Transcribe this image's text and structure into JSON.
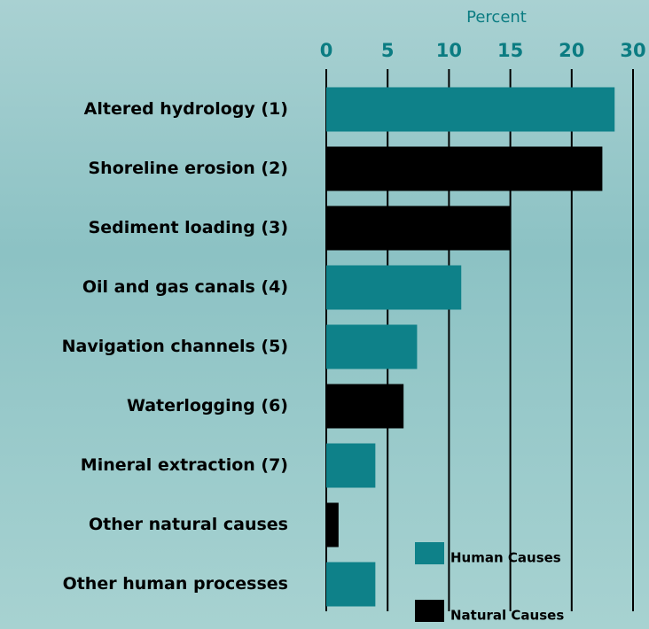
{
  "chart_data": {
    "type": "bar",
    "orientation": "horizontal",
    "xlabel": "Percent",
    "categories": [
      "Altered hydrology (1)",
      "Shoreline erosion (2)",
      "Sediment loading (3)",
      "Oil and gas canals (4)",
      "Navigation channels (5)",
      "Waterlogging (6)",
      "Mineral extraction (7)",
      "Other natural causes",
      "Other human processes"
    ],
    "series": [
      {
        "name": "Human Causes",
        "color": "#0e8189",
        "values": [
          27,
          null,
          null,
          11,
          7.4,
          null,
          4,
          null,
          4
        ]
      },
      {
        "name": "Natural Causes",
        "color": "#000000",
        "values": [
          null,
          25,
          15,
          null,
          null,
          6.3,
          null,
          1,
          null
        ]
      }
    ],
    "xlim": [
      0,
      30
    ],
    "xticks": [
      0,
      5,
      10,
      15,
      20,
      30
    ],
    "grid": true
  }
}
